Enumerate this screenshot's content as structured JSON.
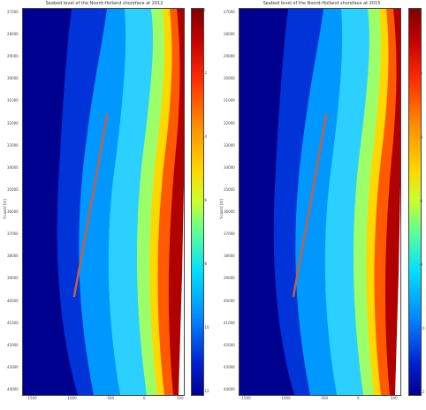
{
  "figures": [
    {
      "title": "Seabed level of the Noord-Holland shoreface at 2012",
      "ylabel": "Y-coord [m]",
      "xticks": [
        "-1500",
        "-1000",
        "-500",
        "0",
        "500"
      ],
      "yticks": [
        "27000",
        "28000",
        "29000",
        "30000",
        "31000",
        "32000",
        "33000",
        "34000",
        "35000",
        "36000",
        "37000",
        "38000",
        "39000",
        "40000",
        "41000",
        "42000",
        "43000",
        "44000"
      ],
      "cbar_ticks": [
        "0",
        "-2",
        "-4",
        "-6",
        "-8",
        "-10",
        "-12"
      ]
    },
    {
      "title": "Seabed level of the Noord-Holland shoreface at 2015",
      "ylabel": "Y-coord [m]",
      "xticks": [
        "-1500",
        "-1000",
        "-500",
        "0",
        "500"
      ],
      "yticks": [
        "27000",
        "28000",
        "29000",
        "30000",
        "31000",
        "32000",
        "33000",
        "34000",
        "35000",
        "36000",
        "37000",
        "38000",
        "39000",
        "40000",
        "41000",
        "42000",
        "43000",
        "44000"
      ],
      "cbar_ticks": [
        "0",
        "-2",
        "-4",
        "-6",
        "-8",
        "-10",
        "-12"
      ]
    }
  ],
  "chart_data": [
    {
      "type": "heatmap",
      "title": "Seabed level of the Noord-Holland shoreface at 2012",
      "ylabel": "Y-coord [m]",
      "xlim": [
        -1500,
        600
      ],
      "ylim": [
        26500,
        44500
      ],
      "colorbar_range": [
        -12,
        0
      ],
      "colormap": "jet",
      "annotation_line_color": "#c0604a"
    },
    {
      "type": "heatmap",
      "title": "Seabed level of the Noord-Holland shoreface at 2015",
      "ylabel": "Y-coord [m]",
      "xlim": [
        -1500,
        600
      ],
      "ylim": [
        26500,
        44500
      ],
      "colorbar_range": [
        -12,
        0
      ],
      "colormap": "jet",
      "annotation_line_color": "#c0604a"
    }
  ]
}
